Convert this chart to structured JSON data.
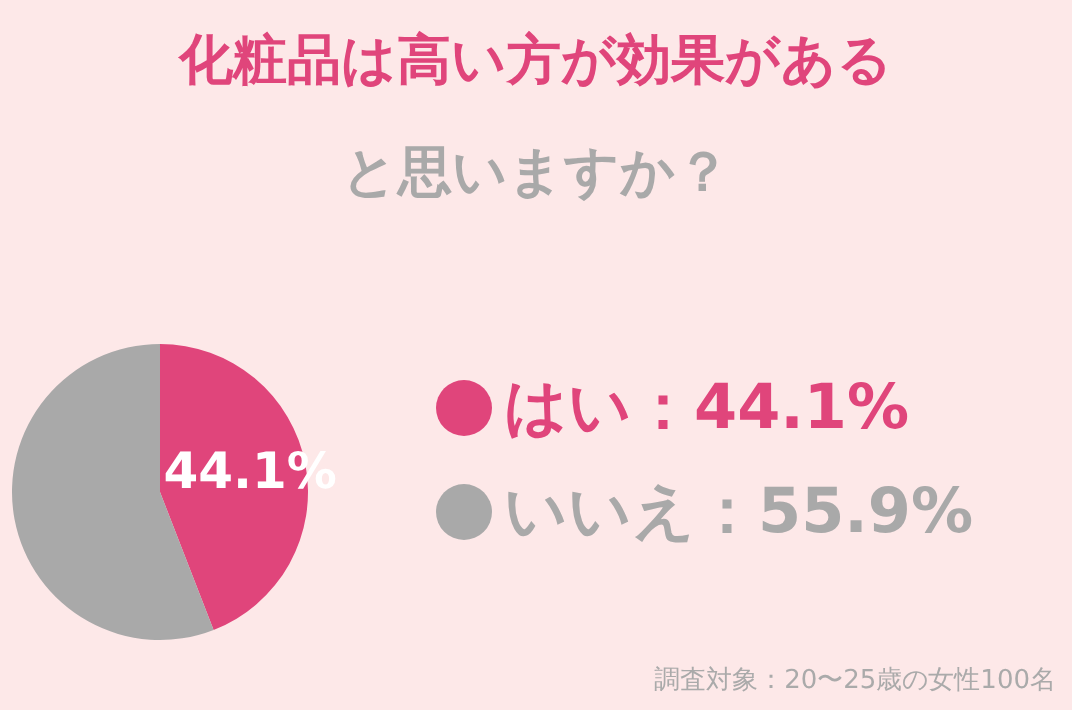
{
  "chart_data": {
    "type": "pie",
    "title": "化粧品は高い方が効果がある",
    "subtitle": "と思いますか？",
    "categories": [
      "はい",
      "いいえ"
    ],
    "values": [
      44.1,
      55.9
    ],
    "colors": [
      "#e0457b",
      "#a9a9a9"
    ],
    "value_labels": [
      "44.1%",
      "55.9%"
    ],
    "legend": "right",
    "annotations": [
      {
        "text": "44.1%",
        "x": "はい"
      },
      "調査対象：20〜25歳の女性100名"
    ]
  }
}
